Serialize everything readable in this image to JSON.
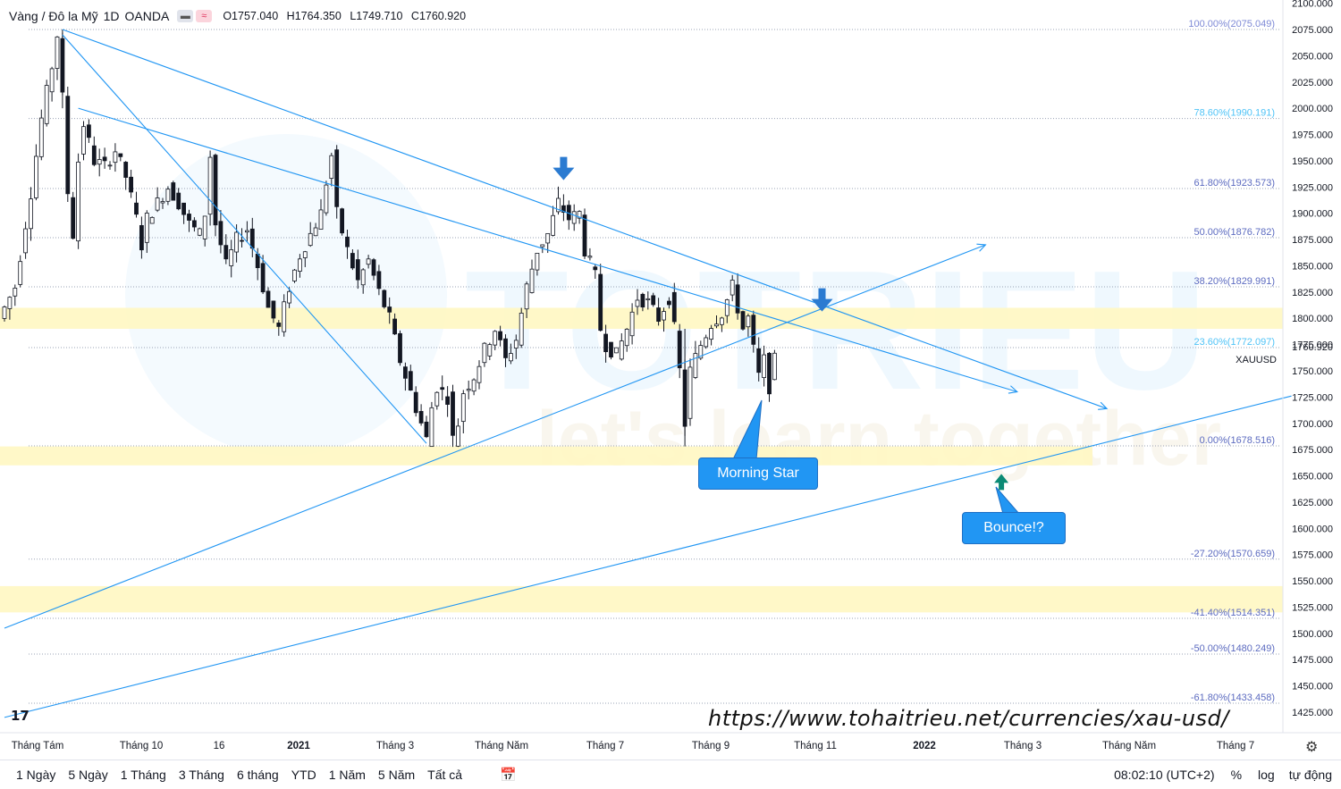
{
  "header": {
    "symbol": "Vàng / Đô la Mỹ",
    "interval": "1D",
    "exchange": "OANDA",
    "pill1": "▬",
    "pill2": "≈",
    "open_label": "O",
    "open": "1757.040",
    "high_label": "H",
    "high": "1764.350",
    "low_label": "L",
    "low": "1749.710",
    "close_label": "C",
    "close": "1760.920"
  },
  "chart_data": {
    "type": "candlestick",
    "symbol_tag": "XAUUSD",
    "last_price": "1760.920",
    "ylim": [
      1400,
      2100
    ],
    "y_ticks": [
      "2100.000",
      "2075.000",
      "2050.000",
      "2025.000",
      "2000.000",
      "1975.000",
      "1950.000",
      "1925.000",
      "1900.000",
      "1875.000",
      "1850.000",
      "1825.000",
      "1800.000",
      "1775.000",
      "1750.000",
      "1725.000",
      "1700.000",
      "1675.000",
      "1650.000",
      "1625.000",
      "1600.000",
      "1575.000",
      "1550.000",
      "1525.000",
      "1500.000",
      "1475.000",
      "1450.000",
      "1425.000"
    ],
    "x_ticks": [
      "Tháng Tám",
      "Tháng 10",
      "16",
      "2021",
      "Tháng 3",
      "Tháng Năm",
      "Tháng 7",
      "Tháng 9",
      "Tháng 11",
      "2022",
      "Tháng 3",
      "Tháng Năm",
      "Tháng 7"
    ],
    "price_path": [
      [
        0,
        1800
      ],
      [
        3,
        1830
      ],
      [
        6,
        1920
      ],
      [
        8,
        1990
      ],
      [
        10,
        2040
      ],
      [
        11,
        2070
      ],
      [
        12,
        2010
      ],
      [
        13,
        1920
      ],
      [
        14,
        1880
      ],
      [
        15,
        1950
      ],
      [
        16,
        1985
      ],
      [
        18,
        1950
      ],
      [
        20,
        1945
      ],
      [
        22,
        1960
      ],
      [
        24,
        1935
      ],
      [
        26,
        1895
      ],
      [
        27,
        1870
      ],
      [
        28,
        1895
      ],
      [
        30,
        1910
      ],
      [
        32,
        1925
      ],
      [
        34,
        1910
      ],
      [
        36,
        1890
      ],
      [
        38,
        1880
      ],
      [
        39,
        1900
      ],
      [
        40,
        1955
      ],
      [
        41,
        1890
      ],
      [
        43,
        1850
      ],
      [
        45,
        1875
      ],
      [
        47,
        1885
      ],
      [
        49,
        1850
      ],
      [
        51,
        1810
      ],
      [
        53,
        1790
      ],
      [
        55,
        1830
      ],
      [
        57,
        1860
      ],
      [
        59,
        1880
      ],
      [
        61,
        1900
      ],
      [
        62,
        1930
      ],
      [
        63,
        1955
      ],
      [
        64,
        1900
      ],
      [
        66,
        1865
      ],
      [
        68,
        1835
      ],
      [
        70,
        1855
      ],
      [
        72,
        1825
      ],
      [
        74,
        1800
      ],
      [
        76,
        1760
      ],
      [
        78,
        1730
      ],
      [
        80,
        1700
      ],
      [
        81,
        1685
      ],
      [
        82,
        1715
      ],
      [
        83,
        1735
      ],
      [
        85,
        1725
      ],
      [
        86,
        1685
      ],
      [
        87,
        1700
      ],
      [
        88,
        1730
      ],
      [
        90,
        1745
      ],
      [
        92,
        1770
      ],
      [
        94,
        1790
      ],
      [
        96,
        1760
      ],
      [
        98,
        1780
      ],
      [
        100,
        1830
      ],
      [
        102,
        1865
      ],
      [
        104,
        1880
      ],
      [
        106,
        1910
      ],
      [
        108,
        1895
      ],
      [
        110,
        1900
      ],
      [
        111,
        1865
      ],
      [
        113,
        1840
      ],
      [
        114,
        1790
      ],
      [
        115,
        1775
      ],
      [
        117,
        1765
      ],
      [
        119,
        1790
      ],
      [
        121,
        1820
      ],
      [
        123,
        1815
      ],
      [
        125,
        1800
      ],
      [
        127,
        1820
      ],
      [
        128,
        1790
      ],
      [
        129,
        1750
      ],
      [
        130,
        1700
      ],
      [
        131,
        1750
      ],
      [
        133,
        1775
      ],
      [
        135,
        1795
      ],
      [
        137,
        1805
      ],
      [
        139,
        1830
      ],
      [
        140,
        1810
      ],
      [
        141,
        1790
      ],
      [
        142,
        1800
      ],
      [
        143,
        1770
      ],
      [
        144,
        1745
      ],
      [
        145,
        1760
      ],
      [
        146,
        1735
      ],
      [
        147,
        1760
      ]
    ],
    "fibonacci": [
      {
        "label": "100.00%(2075.049)",
        "value": 2075.049,
        "color": "#7e8ad6"
      },
      {
        "label": "78.60%(1990.191)",
        "value": 1990.191,
        "color": "#4fc3f7"
      },
      {
        "label": "61.80%(1923.573)",
        "value": 1923.573,
        "color": "#5c6bc0"
      },
      {
        "label": "50.00%(1876.782)",
        "value": 1876.782,
        "color": "#5c6bc0"
      },
      {
        "label": "38.20%(1829.991)",
        "value": 1829.991,
        "color": "#5c6bc0"
      },
      {
        "label": "23.60%(1772.097)",
        "value": 1772.097,
        "color": "#4fc3f7"
      },
      {
        "label": "0.00%(1678.516)",
        "value": 1678.516,
        "color": "#5c6bc0"
      },
      {
        "label": "-27.20%(1570.659)",
        "value": 1570.659,
        "color": "#5c6bc0"
      },
      {
        "label": "-41.40%(1514.351)",
        "value": 1514.351,
        "color": "#5c6bc0"
      },
      {
        "label": "-50.00%(1480.249)",
        "value": 1480.249,
        "color": "#5c6bc0"
      },
      {
        "label": "-61.80%(1433.458)",
        "value": 1433.458,
        "color": "#5c6bc0"
      }
    ],
    "zones": [
      {
        "from": 1790,
        "to": 1810
      },
      {
        "from": 1660,
        "to": 1678
      },
      {
        "from": 1520,
        "to": 1545
      }
    ],
    "trendlines": [
      {
        "from": [
          11,
          2075
        ],
        "to": [
          209,
          1714
        ]
      },
      {
        "from": [
          14,
          2000
        ],
        "to": [
          192,
          1730
        ]
      },
      {
        "from": [
          0,
          1505
        ],
        "to": [
          186,
          1870
        ]
      },
      {
        "from": [
          0,
          1420
        ],
        "to": [
          244,
          1726
        ]
      },
      {
        "from": [
          11,
          2070
        ],
        "to": [
          80,
          1681
        ]
      }
    ],
    "markers": [
      {
        "label": "down-arrow-1",
        "at": [
          106,
          1940
        ],
        "color": "#2b7bd1"
      },
      {
        "label": "down-arrow-2",
        "at": [
          155,
          1815
        ],
        "color": "#2b7bd1"
      },
      {
        "label": "up-arrow",
        "at": [
          189,
          1645
        ],
        "color": "#0b8a75"
      }
    ],
    "annotations": [
      {
        "text": "Morning Star",
        "color": "#2196f3"
      },
      {
        "text": "Bounce!?",
        "color": "#2196f3"
      }
    ],
    "watermark": {
      "brand": "TOTRIEU",
      "tagline": "let's learn together"
    }
  },
  "url_text": "https://www.tohaitrieu.net/currencies/xau-usd/",
  "bottom": {
    "ranges": [
      "1 Ngày",
      "5 Ngày",
      "1 Tháng",
      "3 Tháng",
      "6 tháng",
      "YTD",
      "1 Năm",
      "5 Năm",
      "Tất cả"
    ],
    "time": "08:02:10 (UTC+2)",
    "percent": "%",
    "log": "log",
    "auto": "tự động"
  },
  "colors": {
    "bull": "#ffffff",
    "bear": "#131722",
    "line": "#2196f3",
    "zone": "#fff7c2",
    "label_blue": "#2962ff"
  }
}
